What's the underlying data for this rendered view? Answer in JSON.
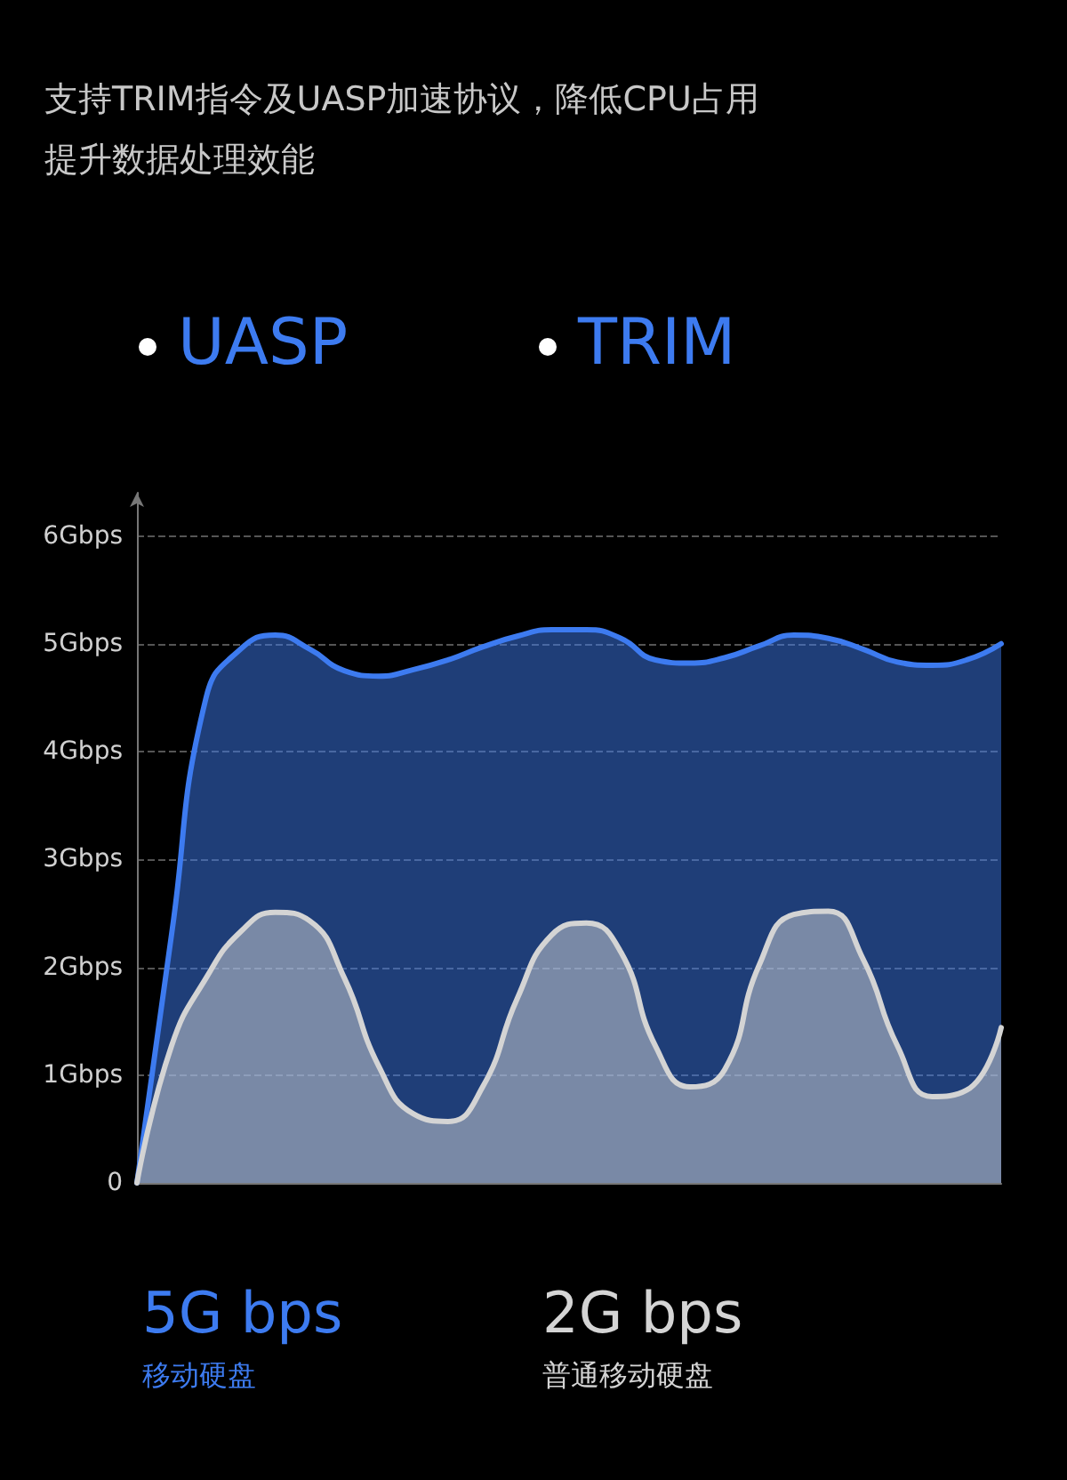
{
  "chart_data": {
    "type": "area",
    "title": "支持TRIM指令及UASP加速协议，降低CPU占用提升数据处理效能",
    "annotations": [
      "UASP",
      "TRIM",
      "5G bps",
      "2G bps"
    ],
    "categories": [
      null,
      null,
      null,
      null,
      null,
      null,
      null,
      null,
      null,
      null,
      null,
      null,
      null,
      null,
      null,
      null,
      null,
      null,
      null,
      null,
      null,
      null,
      null,
      null,
      null,
      null
    ],
    "series": [
      {
        "name": "移动硬盘",
        "color": "#3d7bf0",
        "values": [
          0,
          2.3,
          4.5,
          4.95,
          5.08,
          4.95,
          4.75,
          4.7,
          4.76,
          4.85,
          4.97,
          5.07,
          5.13,
          5.13,
          5.05,
          4.85,
          4.82,
          4.87,
          4.98,
          5.08,
          5.05,
          4.95,
          4.83,
          4.8,
          4.85,
          5.0
        ]
      },
      {
        "name": "普通移动硬盘",
        "color": "#d4d4d4",
        "values": [
          0,
          1.27,
          1.9,
          2.33,
          2.51,
          2.43,
          1.9,
          1.08,
          0.64,
          0.57,
          0.89,
          1.71,
          2.3,
          2.41,
          2.14,
          1.27,
          0.89,
          1.05,
          2.02,
          2.49,
          2.52,
          2.08,
          1.27,
          0.8,
          0.86,
          1.44
        ]
      }
    ],
    "ylim": [
      0,
      6.4
    ],
    "yticks": [
      {
        "value": 0,
        "label": "0"
      },
      {
        "value": 1,
        "label": "1Gbps"
      },
      {
        "value": 2,
        "label": "2Gbps"
      },
      {
        "value": 3,
        "label": "3Gbps"
      },
      {
        "value": 4,
        "label": "4Gbps"
      },
      {
        "value": 5,
        "label": "5Gbps"
      },
      {
        "value": 6,
        "label": "6Gbps"
      }
    ],
    "grid": "y",
    "legend": "bottom",
    "tick_labels": "y",
    "marker": "none",
    "line_style": "solid"
  }
}
